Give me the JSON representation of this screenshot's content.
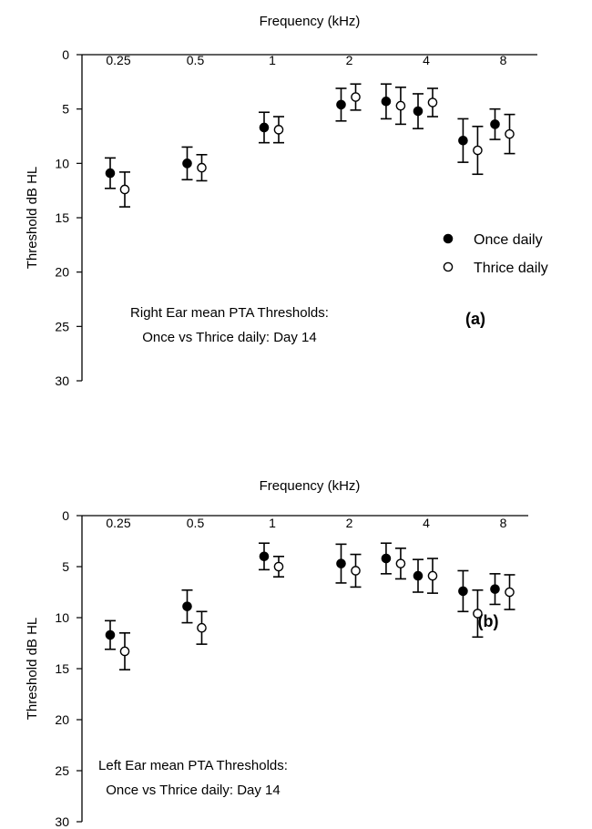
{
  "chart_data": [
    {
      "type": "scatter",
      "panel": "(a)",
      "xlabel": "Frequency (kHz)",
      "ylabel": "Threshold dB HL",
      "x_tick_labels": [
        "0.25",
        "0.5",
        "1",
        "2",
        "4",
        "8"
      ],
      "y_ticks": [
        0,
        5,
        10,
        15,
        20,
        25,
        30
      ],
      "ylim": [
        0,
        30
      ],
      "y_inverted": true,
      "annotation_lines": [
        "Right Ear mean PTA Thresholds:",
        "Once vs Thrice daily: Day 14"
      ],
      "legend_position": "right-middle",
      "series": [
        {
          "name": "Once daily",
          "marker": "filled-circle",
          "points": [
            {
              "x": "0.25",
              "y": 10.9,
              "err": 1.4
            },
            {
              "x": "0.5",
              "y": 10.0,
              "err": 1.5
            },
            {
              "x": "1",
              "y": 6.7,
              "err": 1.4
            },
            {
              "x": "2",
              "y": 4.6,
              "err": 1.5
            },
            {
              "x": "3",
              "y": 4.3,
              "err": 1.6
            },
            {
              "x": "4",
              "y": 5.2,
              "err": 1.6
            },
            {
              "x": "6",
              "y": 7.9,
              "err": 2.0
            },
            {
              "x": "8",
              "y": 6.4,
              "err": 1.4
            }
          ]
        },
        {
          "name": "Thrice daily",
          "marker": "open-circle",
          "points": [
            {
              "x": "0.25",
              "y": 12.4,
              "err": 1.6
            },
            {
              "x": "0.5",
              "y": 10.4,
              "err": 1.2
            },
            {
              "x": "1",
              "y": 6.9,
              "err": 1.2
            },
            {
              "x": "2",
              "y": 3.9,
              "err": 1.2
            },
            {
              "x": "3",
              "y": 4.7,
              "err": 1.7
            },
            {
              "x": "4",
              "y": 4.4,
              "err": 1.3
            },
            {
              "x": "6",
              "y": 8.8,
              "err": 2.2
            },
            {
              "x": "8",
              "y": 7.3,
              "err": 1.8
            }
          ]
        }
      ]
    },
    {
      "type": "scatter",
      "panel": "(b)",
      "xlabel": "Frequency (kHz)",
      "ylabel": "Threshold dB HL",
      "x_tick_labels": [
        "0.25",
        "0.5",
        "1",
        "2",
        "4",
        "8"
      ],
      "y_ticks": [
        0,
        5,
        10,
        15,
        20,
        25,
        30
      ],
      "ylim": [
        0,
        30
      ],
      "y_inverted": true,
      "annotation_lines": [
        "Left Ear mean PTA Thresholds:",
        "Once vs Thrice daily: Day 14"
      ],
      "series": [
        {
          "name": "Once daily",
          "marker": "filled-circle",
          "points": [
            {
              "x": "0.25",
              "y": 11.7,
              "err": 1.4
            },
            {
              "x": "0.5",
              "y": 8.9,
              "err": 1.6
            },
            {
              "x": "1",
              "y": 4.0,
              "err": 1.3
            },
            {
              "x": "2",
              "y": 4.7,
              "err": 1.9
            },
            {
              "x": "3",
              "y": 4.2,
              "err": 1.5
            },
            {
              "x": "4",
              "y": 5.9,
              "err": 1.6
            },
            {
              "x": "6",
              "y": 7.4,
              "err": 2.0
            },
            {
              "x": "8",
              "y": 7.2,
              "err": 1.5
            }
          ]
        },
        {
          "name": "Thrice daily",
          "marker": "open-circle",
          "points": [
            {
              "x": "0.25",
              "y": 13.3,
              "err": 1.8
            },
            {
              "x": "0.5",
              "y": 11.0,
              "err": 1.6
            },
            {
              "x": "1",
              "y": 5.0,
              "err": 1.0
            },
            {
              "x": "2",
              "y": 5.4,
              "err": 1.6
            },
            {
              "x": "3",
              "y": 4.7,
              "err": 1.5
            },
            {
              "x": "4",
              "y": 5.9,
              "err": 1.7
            },
            {
              "x": "6",
              "y": 9.6,
              "err": 2.3
            },
            {
              "x": "8",
              "y": 7.5,
              "err": 1.7
            }
          ]
        }
      ]
    }
  ]
}
